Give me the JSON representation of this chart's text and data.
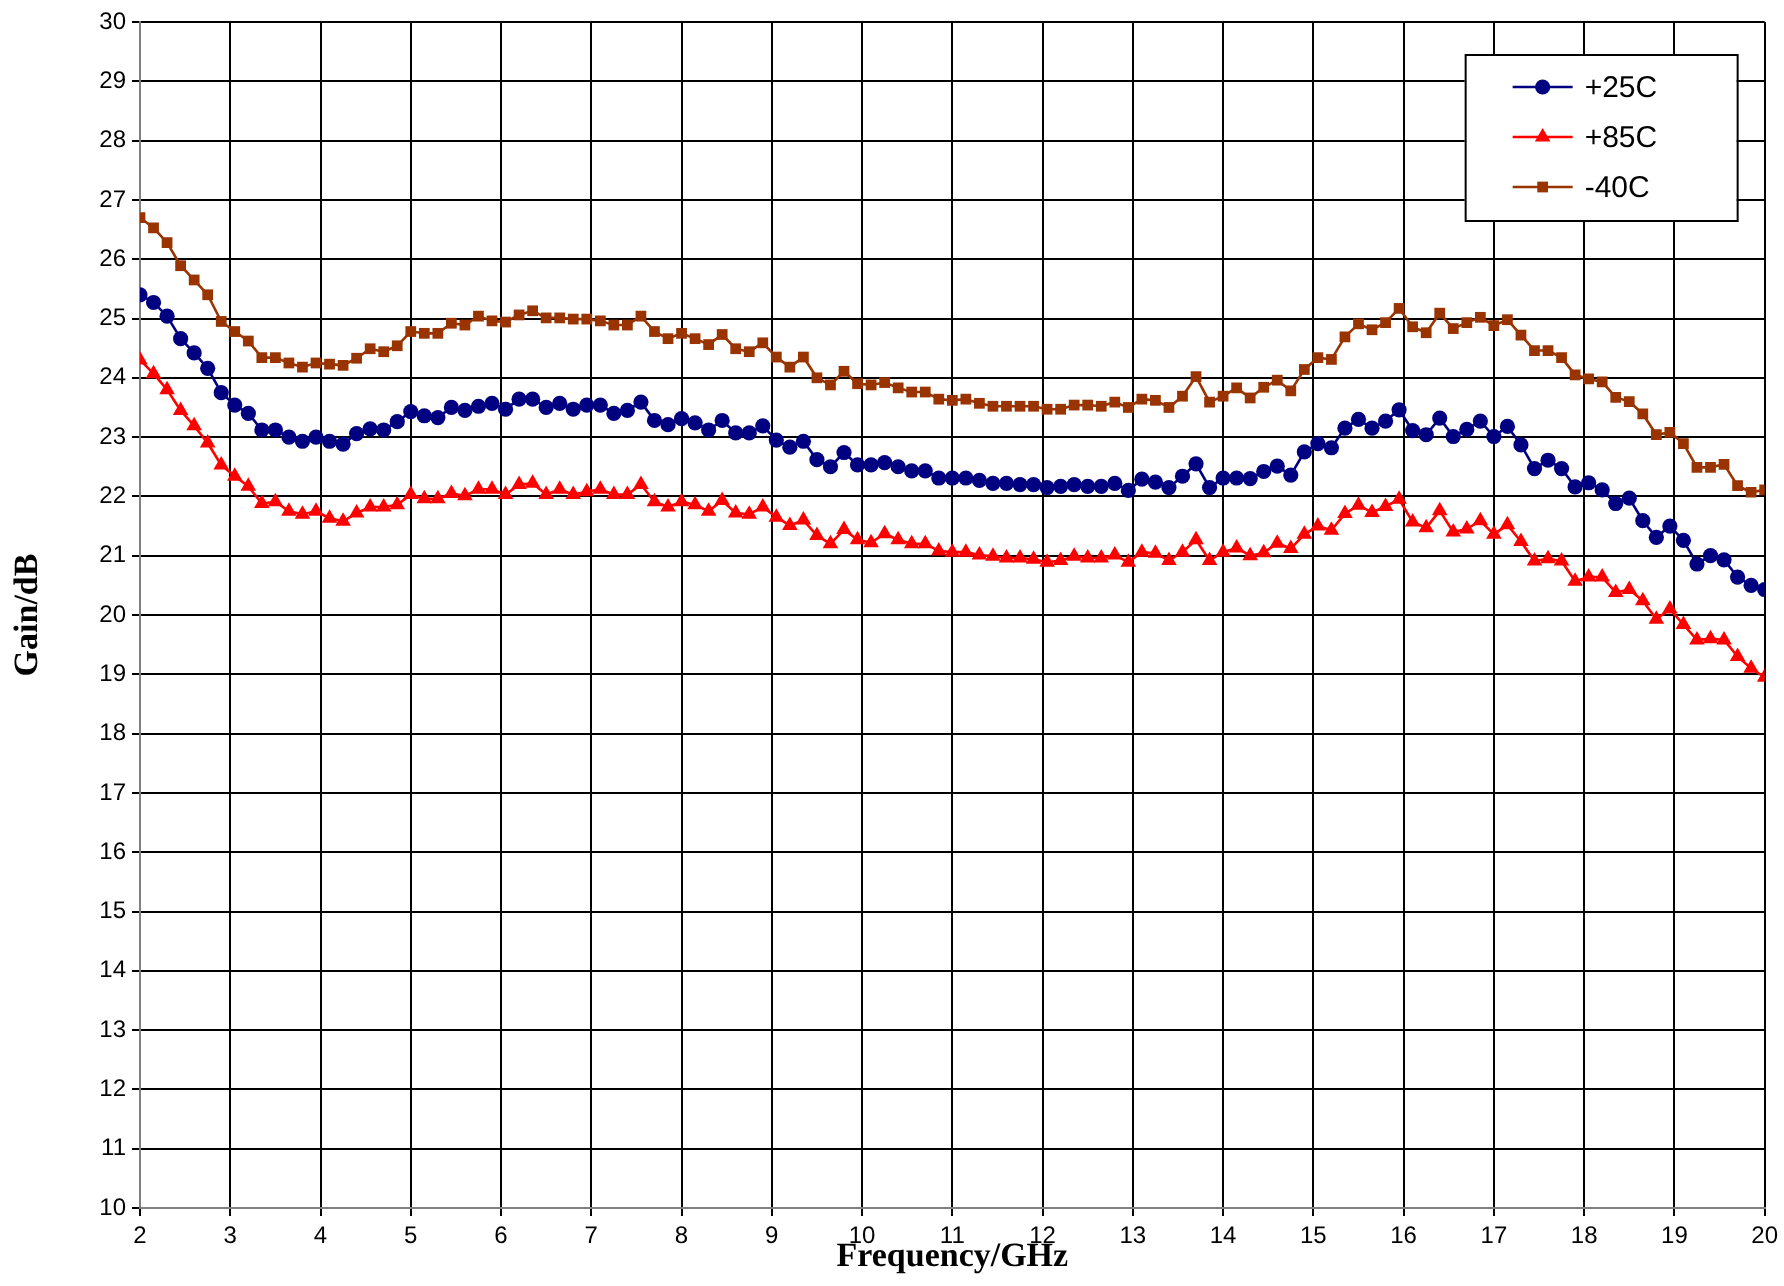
{
  "chart_data": {
    "type": "line",
    "xlabel": "Frequency/GHz",
    "ylabel": "Gain/dB",
    "xlim": [
      2,
      20
    ],
    "xticks": [
      2,
      3,
      4,
      5,
      6,
      7,
      8,
      9,
      10,
      11,
      12,
      13,
      14,
      15,
      16,
      17,
      18,
      19,
      20
    ],
    "ylim": [
      10,
      30
    ],
    "yticks": [
      10,
      11,
      12,
      13,
      14,
      15,
      16,
      17,
      18,
      19,
      20,
      21,
      22,
      23,
      24,
      25,
      26,
      27,
      28,
      29,
      30
    ],
    "grid": true,
    "legend": "top right",
    "line_style": "solid",
    "x": [
      2,
      2.15,
      2.3,
      2.45,
      2.6,
      2.75,
      2.9,
      3.05,
      3.2,
      3.35,
      3.5,
      3.65,
      3.8,
      3.95,
      4.1,
      4.25,
      4.4,
      4.55,
      4.7,
      4.85,
      5,
      5.15,
      5.3,
      5.45,
      5.6,
      5.75,
      5.9,
      6.05,
      6.2,
      6.35,
      6.5,
      6.65,
      6.8,
      6.95,
      7.1,
      7.25,
      7.4,
      7.55,
      7.7,
      7.85,
      8,
      8.15,
      8.3,
      8.45,
      8.6,
      8.75,
      8.9,
      9.05,
      9.2,
      9.35,
      9.5,
      9.65,
      9.8,
      9.95,
      10.1,
      10.25,
      10.4,
      10.55,
      10.7,
      10.85,
      11,
      11.15,
      11.3,
      11.45,
      11.6,
      11.75,
      11.9,
      12.05,
      12.2,
      12.35,
      12.5,
      12.65,
      12.8,
      12.95,
      13.1,
      13.25,
      13.4,
      13.55,
      13.7,
      13.85,
      14,
      14.15,
      14.3,
      14.45,
      14.6,
      14.75,
      14.9,
      15.05,
      15.2,
      15.35,
      15.5,
      15.65,
      15.8,
      15.95,
      16.1,
      16.25,
      16.4,
      16.55,
      16.7,
      16.85,
      17,
      17.15,
      17.3,
      17.45,
      17.6,
      17.75,
      17.9,
      18.05,
      18.2,
      18.35,
      18.5,
      18.65,
      18.8,
      18.95,
      19.1,
      19.25,
      19.4,
      19.55,
      19.7,
      19.85,
      20
    ],
    "series": [
      {
        "name": "+25C",
        "color": "#000080",
        "marker": "circle",
        "values": [
          25.4,
          25.27,
          25.04,
          24.66,
          24.42,
          24.16,
          23.75,
          23.54,
          23.4,
          23.12,
          23.12,
          23.0,
          22.93,
          23.0,
          22.93,
          22.88,
          23.06,
          23.14,
          23.12,
          23.26,
          23.43,
          23.36,
          23.33,
          23.5,
          23.45,
          23.52,
          23.57,
          23.47,
          23.64,
          23.64,
          23.5,
          23.57,
          23.47,
          23.54,
          23.54,
          23.4,
          23.45,
          23.59,
          23.28,
          23.21,
          23.31,
          23.24,
          23.12,
          23.28,
          23.07,
          23.07,
          23.19,
          22.95,
          22.83,
          22.93,
          22.62,
          22.5,
          22.74,
          22.53,
          22.53,
          22.57,
          22.5,
          22.43,
          22.43,
          22.31,
          22.31,
          22.31,
          22.27,
          22.22,
          22.22,
          22.2,
          22.2,
          22.15,
          22.17,
          22.2,
          22.17,
          22.17,
          22.22,
          22.1,
          22.29,
          22.24,
          22.15,
          22.34,
          22.55,
          22.15,
          22.31,
          22.31,
          22.3,
          22.42,
          22.51,
          22.36,
          22.75,
          22.89,
          22.82,
          23.15,
          23.3,
          23.15,
          23.27,
          23.46,
          23.11,
          23.04,
          23.32,
          23.01,
          23.13,
          23.27,
          23.01,
          23.18,
          22.87,
          22.47,
          22.61,
          22.47,
          22.16,
          22.23,
          22.11,
          21.88,
          21.97,
          21.59,
          21.31,
          21.5,
          21.26,
          20.86,
          21.0,
          20.93,
          20.64,
          20.5,
          20.43
        ]
      },
      {
        "name": "+85C",
        "color": "#ff0000",
        "marker": "triangle",
        "values": [
          24.3,
          24.07,
          23.8,
          23.45,
          23.19,
          22.9,
          22.53,
          22.34,
          22.17,
          21.88,
          21.91,
          21.75,
          21.7,
          21.75,
          21.63,
          21.58,
          21.72,
          21.82,
          21.82,
          21.86,
          22.03,
          21.96,
          21.96,
          22.05,
          22.01,
          22.12,
          22.12,
          22.03,
          22.2,
          22.22,
          22.03,
          22.12,
          22.03,
          22.08,
          22.12,
          22.03,
          22.03,
          22.2,
          21.91,
          21.82,
          21.91,
          21.86,
          21.75,
          21.93,
          21.72,
          21.7,
          21.82,
          21.65,
          21.51,
          21.6,
          21.34,
          21.2,
          21.44,
          21.27,
          21.22,
          21.37,
          21.27,
          21.2,
          21.2,
          21.08,
          21.06,
          21.06,
          21.01,
          20.99,
          20.96,
          20.96,
          20.94,
          20.89,
          20.92,
          20.99,
          20.96,
          20.96,
          21.01,
          20.89,
          21.06,
          21.04,
          20.92,
          21.06,
          21.27,
          20.92,
          21.06,
          21.13,
          21.0,
          21.05,
          21.21,
          21.12,
          21.36,
          21.5,
          21.43,
          21.71,
          21.85,
          21.73,
          21.83,
          21.95,
          21.57,
          21.47,
          21.76,
          21.4,
          21.45,
          21.59,
          21.36,
          21.52,
          21.24,
          20.91,
          20.95,
          20.91,
          20.57,
          20.64,
          20.64,
          20.38,
          20.43,
          20.24,
          19.93,
          20.1,
          19.84,
          19.58,
          19.6,
          19.58,
          19.3,
          19.1,
          18.95
        ]
      },
      {
        "name": "-40C",
        "color": "#993300",
        "marker": "square",
        "values": [
          26.7,
          26.53,
          26.28,
          25.89,
          25.65,
          25.4,
          24.95,
          24.78,
          24.62,
          24.34,
          24.34,
          24.25,
          24.18,
          24.25,
          24.23,
          24.21,
          24.33,
          24.49,
          24.44,
          24.54,
          24.78,
          24.75,
          24.75,
          24.92,
          24.89,
          25.04,
          24.96,
          24.94,
          25.06,
          25.13,
          25.01,
          25.01,
          24.99,
          24.99,
          24.96,
          24.89,
          24.89,
          25.04,
          24.78,
          24.66,
          24.75,
          24.66,
          24.56,
          24.73,
          24.49,
          24.44,
          24.59,
          24.35,
          24.18,
          24.35,
          24.0,
          23.88,
          24.11,
          23.9,
          23.88,
          23.92,
          23.83,
          23.76,
          23.76,
          23.64,
          23.62,
          23.64,
          23.57,
          23.52,
          23.52,
          23.52,
          23.52,
          23.47,
          23.47,
          23.54,
          23.54,
          23.52,
          23.59,
          23.5,
          23.64,
          23.62,
          23.5,
          23.69,
          24.02,
          23.59,
          23.69,
          23.83,
          23.66,
          23.84,
          23.96,
          23.78,
          24.14,
          24.34,
          24.31,
          24.69,
          24.91,
          24.81,
          24.93,
          25.17,
          24.86,
          24.76,
          25.09,
          24.83,
          24.93,
          25.02,
          24.88,
          24.98,
          24.72,
          24.46,
          24.46,
          24.34,
          24.05,
          23.98,
          23.93,
          23.67,
          23.6,
          23.39,
          23.04,
          23.08,
          22.89,
          22.49,
          22.49,
          22.54,
          22.18,
          22.07,
          22.11
        ]
      }
    ]
  }
}
